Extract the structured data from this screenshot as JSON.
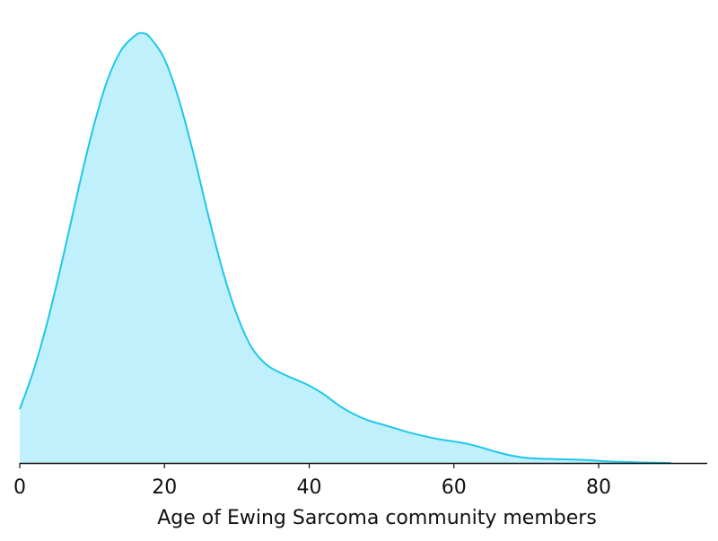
{
  "chart_data": {
    "type": "area",
    "title": "",
    "xlabel": "Age of Ewing Sarcoma community members",
    "ylabel": "",
    "xlim": [
      0,
      95
    ],
    "ylim": [
      0,
      1.0
    ],
    "xticks": [
      0,
      20,
      40,
      60,
      80
    ],
    "xtick_labels": [
      "0",
      "20",
      "40",
      "60",
      "80"
    ],
    "y_axis_visible": false,
    "grid": false,
    "series": [
      {
        "x": [
          0,
          2,
          4,
          6,
          8,
          10,
          12,
          14,
          16,
          17,
          18,
          20,
          22,
          24,
          26,
          28,
          30,
          32,
          34,
          36,
          38,
          40,
          42,
          44,
          46,
          48,
          50,
          52,
          54,
          56,
          58,
          60,
          62,
          64,
          66,
          68,
          70,
          72,
          74,
          76,
          78,
          80,
          82,
          84,
          86,
          88,
          90
        ],
        "y": [
          0.125,
          0.22,
          0.34,
          0.48,
          0.63,
          0.77,
          0.885,
          0.96,
          0.995,
          1.0,
          0.99,
          0.94,
          0.845,
          0.72,
          0.58,
          0.45,
          0.345,
          0.27,
          0.23,
          0.21,
          0.195,
          0.18,
          0.16,
          0.135,
          0.115,
          0.1,
          0.09,
          0.08,
          0.07,
          0.062,
          0.055,
          0.05,
          0.044,
          0.035,
          0.025,
          0.017,
          0.012,
          0.01,
          0.009,
          0.008,
          0.007,
          0.005,
          0.003,
          0.002,
          0.001,
          0.0005,
          0.0
        ]
      }
    ],
    "colors": {
      "line": "#1ec8ea",
      "fill": "#bff0fb",
      "axis": "#111111"
    }
  }
}
